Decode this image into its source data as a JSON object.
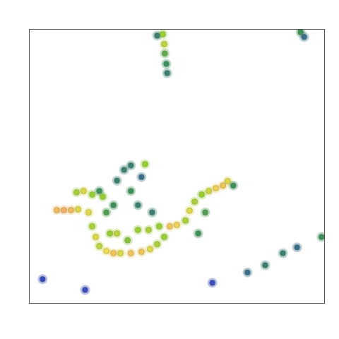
{
  "chart_data": {
    "type": "heatmap",
    "xlim": [
      0,
      100
    ],
    "ylim": [
      0,
      100
    ],
    "zlim": [
      0,
      1
    ],
    "tick_labels": false,
    "grid": false,
    "cells": [
      [
        9.3,
        34.0,
        0.9
      ],
      [
        11.7,
        34.0,
        0.95
      ],
      [
        14.1,
        34.0,
        0.9
      ],
      [
        16.5,
        34.3,
        0.7
      ],
      [
        16.0,
        40.5,
        0.55
      ],
      [
        18.4,
        41.0,
        0.7
      ],
      [
        21.3,
        39.7,
        0.5
      ],
      [
        24.9,
        38.9,
        0.5
      ],
      [
        20.1,
        33.2,
        0.7
      ],
      [
        21.3,
        28.1,
        0.55
      ],
      [
        22.5,
        24.2,
        0.7
      ],
      [
        23.7,
        20.9,
        0.6
      ],
      [
        26.1,
        19.1,
        0.75
      ],
      [
        28.5,
        18.3,
        0.85
      ],
      [
        30.9,
        18.3,
        0.7
      ],
      [
        34.4,
        18.3,
        0.85
      ],
      [
        38.0,
        18.8,
        0.85
      ],
      [
        40.9,
        19.8,
        0.7
      ],
      [
        43.3,
        21.6,
        0.55
      ],
      [
        45.7,
        24.2,
        0.5
      ],
      [
        44.0,
        28.1,
        0.5
      ],
      [
        47.6,
        28.1,
        0.85
      ],
      [
        50.0,
        28.6,
        0.8
      ],
      [
        52.9,
        30.2,
        0.55
      ],
      [
        54.3,
        33.8,
        0.7
      ],
      [
        56.0,
        37.1,
        0.55
      ],
      [
        58.4,
        39.7,
        0.5
      ],
      [
        60.8,
        41.0,
        0.65
      ],
      [
        63.2,
        42.0,
        0.8
      ],
      [
        65.6,
        43.0,
        0.85
      ],
      [
        67.2,
        44.6,
        0.7
      ],
      [
        69.1,
        43.0,
        0.25
      ],
      [
        27.3,
        25.5,
        0.5
      ],
      [
        29.7,
        25.5,
        0.6
      ],
      [
        36.8,
        26.8,
        0.5
      ],
      [
        40.4,
        26.8,
        0.55
      ],
      [
        33.3,
        23.0,
        0.45
      ],
      [
        57.2,
        25.5,
        0.25
      ],
      [
        59.6,
        33.2,
        0.3
      ],
      [
        32.1,
        48.7,
        0.2
      ],
      [
        29.7,
        44.8,
        0.2
      ],
      [
        34.4,
        41.0,
        0.25
      ],
      [
        36.8,
        35.8,
        0.2
      ],
      [
        28.5,
        35.8,
        0.25
      ],
      [
        26.1,
        33.2,
        0.3
      ],
      [
        39.2,
        50.8,
        0.5
      ],
      [
        34.4,
        50.3,
        0.2
      ],
      [
        41.6,
        33.2,
        0.2
      ],
      [
        23.7,
        41.0,
        0.25
      ],
      [
        38.0,
        46.1,
        0.15
      ],
      [
        45.2,
        98.2,
        0.5
      ],
      [
        45.7,
        94.6,
        0.6
      ],
      [
        45.9,
        91.2,
        0.35
      ],
      [
        46.4,
        87.4,
        0.25
      ],
      [
        46.7,
        84.0,
        0.2
      ],
      [
        43.3,
        97.7,
        0.2
      ],
      [
        91.9,
        99.0,
        0.25
      ],
      [
        93.1,
        97.2,
        0.15
      ],
      [
        73.9,
        11.3,
        0.15
      ],
      [
        79.9,
        13.9,
        0.2
      ],
      [
        85.9,
        18.3,
        0.2
      ],
      [
        90.7,
        20.4,
        0.15
      ],
      [
        99.0,
        24.2,
        0.25
      ],
      [
        4.5,
        8.8,
        0.05
      ],
      [
        18.9,
        4.9,
        0.05
      ],
      [
        62.0,
        7.5,
        0.05
      ]
    ]
  }
}
